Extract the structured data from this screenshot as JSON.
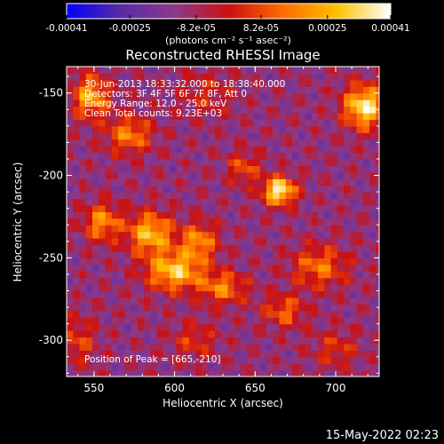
{
  "chart_data": {
    "type": "heatmap",
    "title": "Reconstructed RHESSI Image",
    "xlabel": "Heliocentric X (arcsec)",
    "ylabel": "Heliocentric Y (arcsec)",
    "xlim": [
      533,
      727
    ],
    "ylim": [
      -322,
      -134
    ],
    "xticks": [
      550,
      600,
      650,
      700
    ],
    "yticks": [
      -150,
      -200,
      -250,
      -300
    ],
    "colorbar": {
      "label": "(photons cm⁻² s⁻¹ asec⁻²)",
      "range": [
        -0.00041,
        0.00041
      ],
      "ticks": [
        {
          "value": -0.00041,
          "label": "-0.00041"
        },
        {
          "value": -0.00025,
          "label": "-0.00025"
        },
        {
          "value": -8.2e-05,
          "label": "-8.2e-05"
        },
        {
          "value": 8.2e-05,
          "label": "8.2e-05"
        },
        {
          "value": 0.00025,
          "label": "0.00025"
        },
        {
          "value": 0.00041,
          "label": "0.00041"
        }
      ],
      "colors": [
        "#0000ff",
        "#5a2aa5",
        "#8a3a8a",
        "#cc1010",
        "#ff6a00",
        "#ffc000",
        "#ffffff"
      ]
    },
    "annotations": [
      "30-Jun-2013 18:33:32.000 to 18:38:40.000",
      "Detectors: 3F 4F 5F 6F 7F 8F, Att 0",
      "Energy Range: 12.0 - 25.0 keV",
      "Clean    Total counts: 9.23E+03"
    ],
    "peak_label": "Position of Peak = [665,-210]",
    "peak": [
      665,
      -210
    ],
    "sources": [
      {
        "x": 665,
        "y": -209,
        "amp": 1.0,
        "sx": 7,
        "sy": 6
      },
      {
        "x": 718,
        "y": -158,
        "amp": 0.95,
        "sx": 9,
        "sy": 9
      },
      {
        "x": 548,
        "y": -152,
        "amp": 0.7,
        "sx": 8,
        "sy": 9
      },
      {
        "x": 572,
        "y": -175,
        "amp": 0.55,
        "sx": 10,
        "sy": 8
      },
      {
        "x": 600,
        "y": -258,
        "amp": 0.8,
        "sx": 12,
        "sy": 8
      },
      {
        "x": 585,
        "y": -235,
        "amp": 0.75,
        "sx": 10,
        "sy": 9
      },
      {
        "x": 615,
        "y": -240,
        "amp": 0.6,
        "sx": 8,
        "sy": 8
      },
      {
        "x": 555,
        "y": -228,
        "amp": 0.6,
        "sx": 8,
        "sy": 8
      },
      {
        "x": 630,
        "y": -268,
        "amp": 0.55,
        "sx": 10,
        "sy": 7
      },
      {
        "x": 690,
        "y": -255,
        "amp": 0.5,
        "sx": 12,
        "sy": 9
      },
      {
        "x": 668,
        "y": -282,
        "amp": 0.45,
        "sx": 9,
        "sy": 7
      },
      {
        "x": 643,
        "y": -195,
        "amp": 0.4,
        "sx": 7,
        "sy": 7
      },
      {
        "x": 540,
        "y": -300,
        "amp": 0.35,
        "sx": 8,
        "sy": 10
      },
      {
        "x": 612,
        "y": -300,
        "amp": 0.3,
        "sx": 10,
        "sy": 8
      },
      {
        "x": 700,
        "y": -305,
        "amp": 0.3,
        "sx": 10,
        "sy": 8
      },
      {
        "x": 620,
        "y": -150,
        "amp": 0.25,
        "sx": 12,
        "sy": 10
      }
    ]
  },
  "footer": {
    "timestamp": "15-May-2022 02:23"
  }
}
